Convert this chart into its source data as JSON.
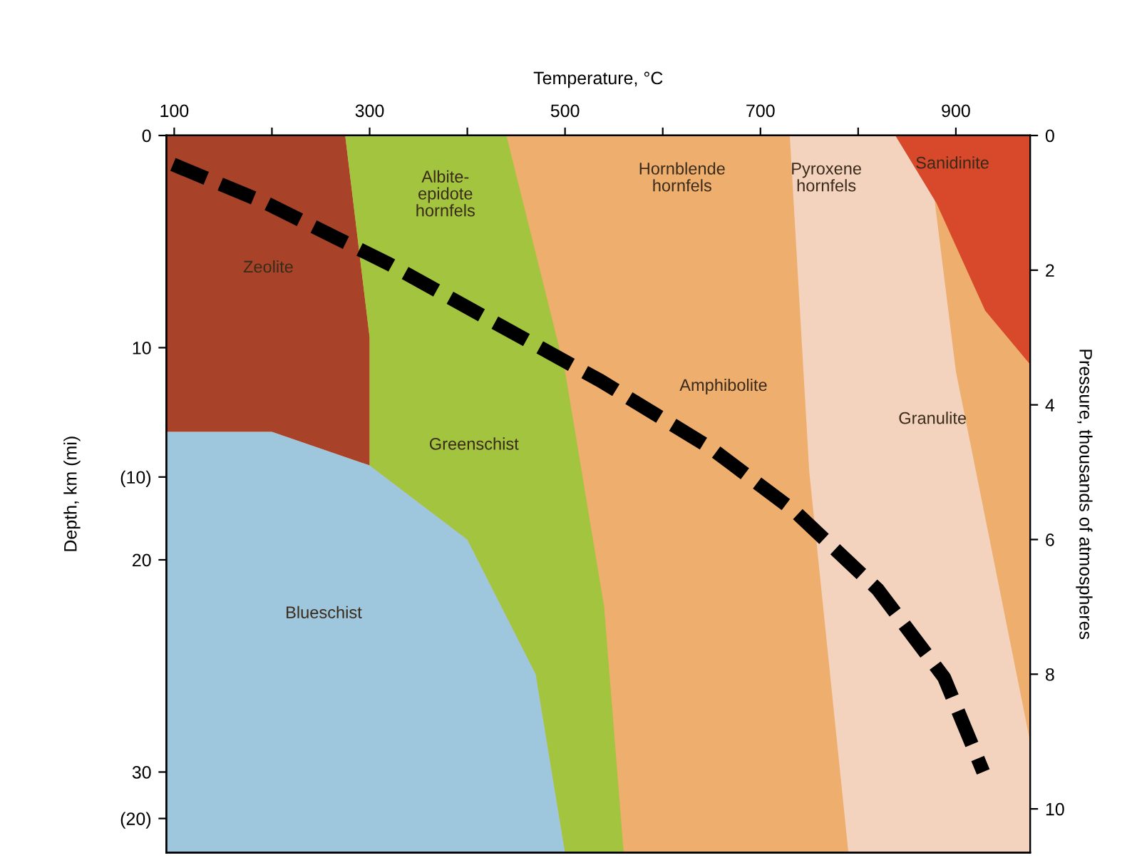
{
  "chart_data": {
    "type": "line",
    "xlabel": "Temperature, °C",
    "ylabel": "Depth, km (mi)",
    "y2label": "Pressure, thousands of atmospheres",
    "xlim": [
      92,
      976
    ],
    "xticks": [
      100,
      {
        "value": 200,
        "label": null
      },
      300,
      {
        "value": 400,
        "label": null
      },
      500,
      {
        "value": 600,
        "label": null
      },
      700,
      {
        "value": 800,
        "label": null
      },
      900
    ],
    "ylim": [
      33.8,
      0
    ],
    "yticks": [
      0,
      10,
      20,
      30
    ],
    "y3lim": [
      21.0,
      0
    ],
    "y3ticks": [
      {
        "value": 10,
        "label": "(10)"
      },
      {
        "value": 20,
        "label": "(20)"
      }
    ],
    "y2lim": [
      10.65,
      0
    ],
    "y2ticks": [
      0,
      2,
      4,
      6,
      8,
      10
    ],
    "line_style": "dashed",
    "series": [
      {
        "color": "#000000",
        "axis": "y2",
        "x": [
          98.7,
          195,
          320,
          422,
          536,
          649,
          735,
          820,
          888,
          928
        ],
        "values": [
          0.43,
          1.01,
          1.91,
          2.73,
          3.64,
          4.64,
          5.58,
          6.74,
          8.05,
          9.45
        ]
      }
    ],
    "annotations": [
      "Zeolite",
      "Albite-\nepidote\nhornfels",
      "Hornblende\nhornfels",
      "Pyroxene\nhornfels",
      "Sanidinite",
      "Amphibolite",
      "Granulite",
      "Greenschist",
      "Blueschist"
    ]
  }
}
